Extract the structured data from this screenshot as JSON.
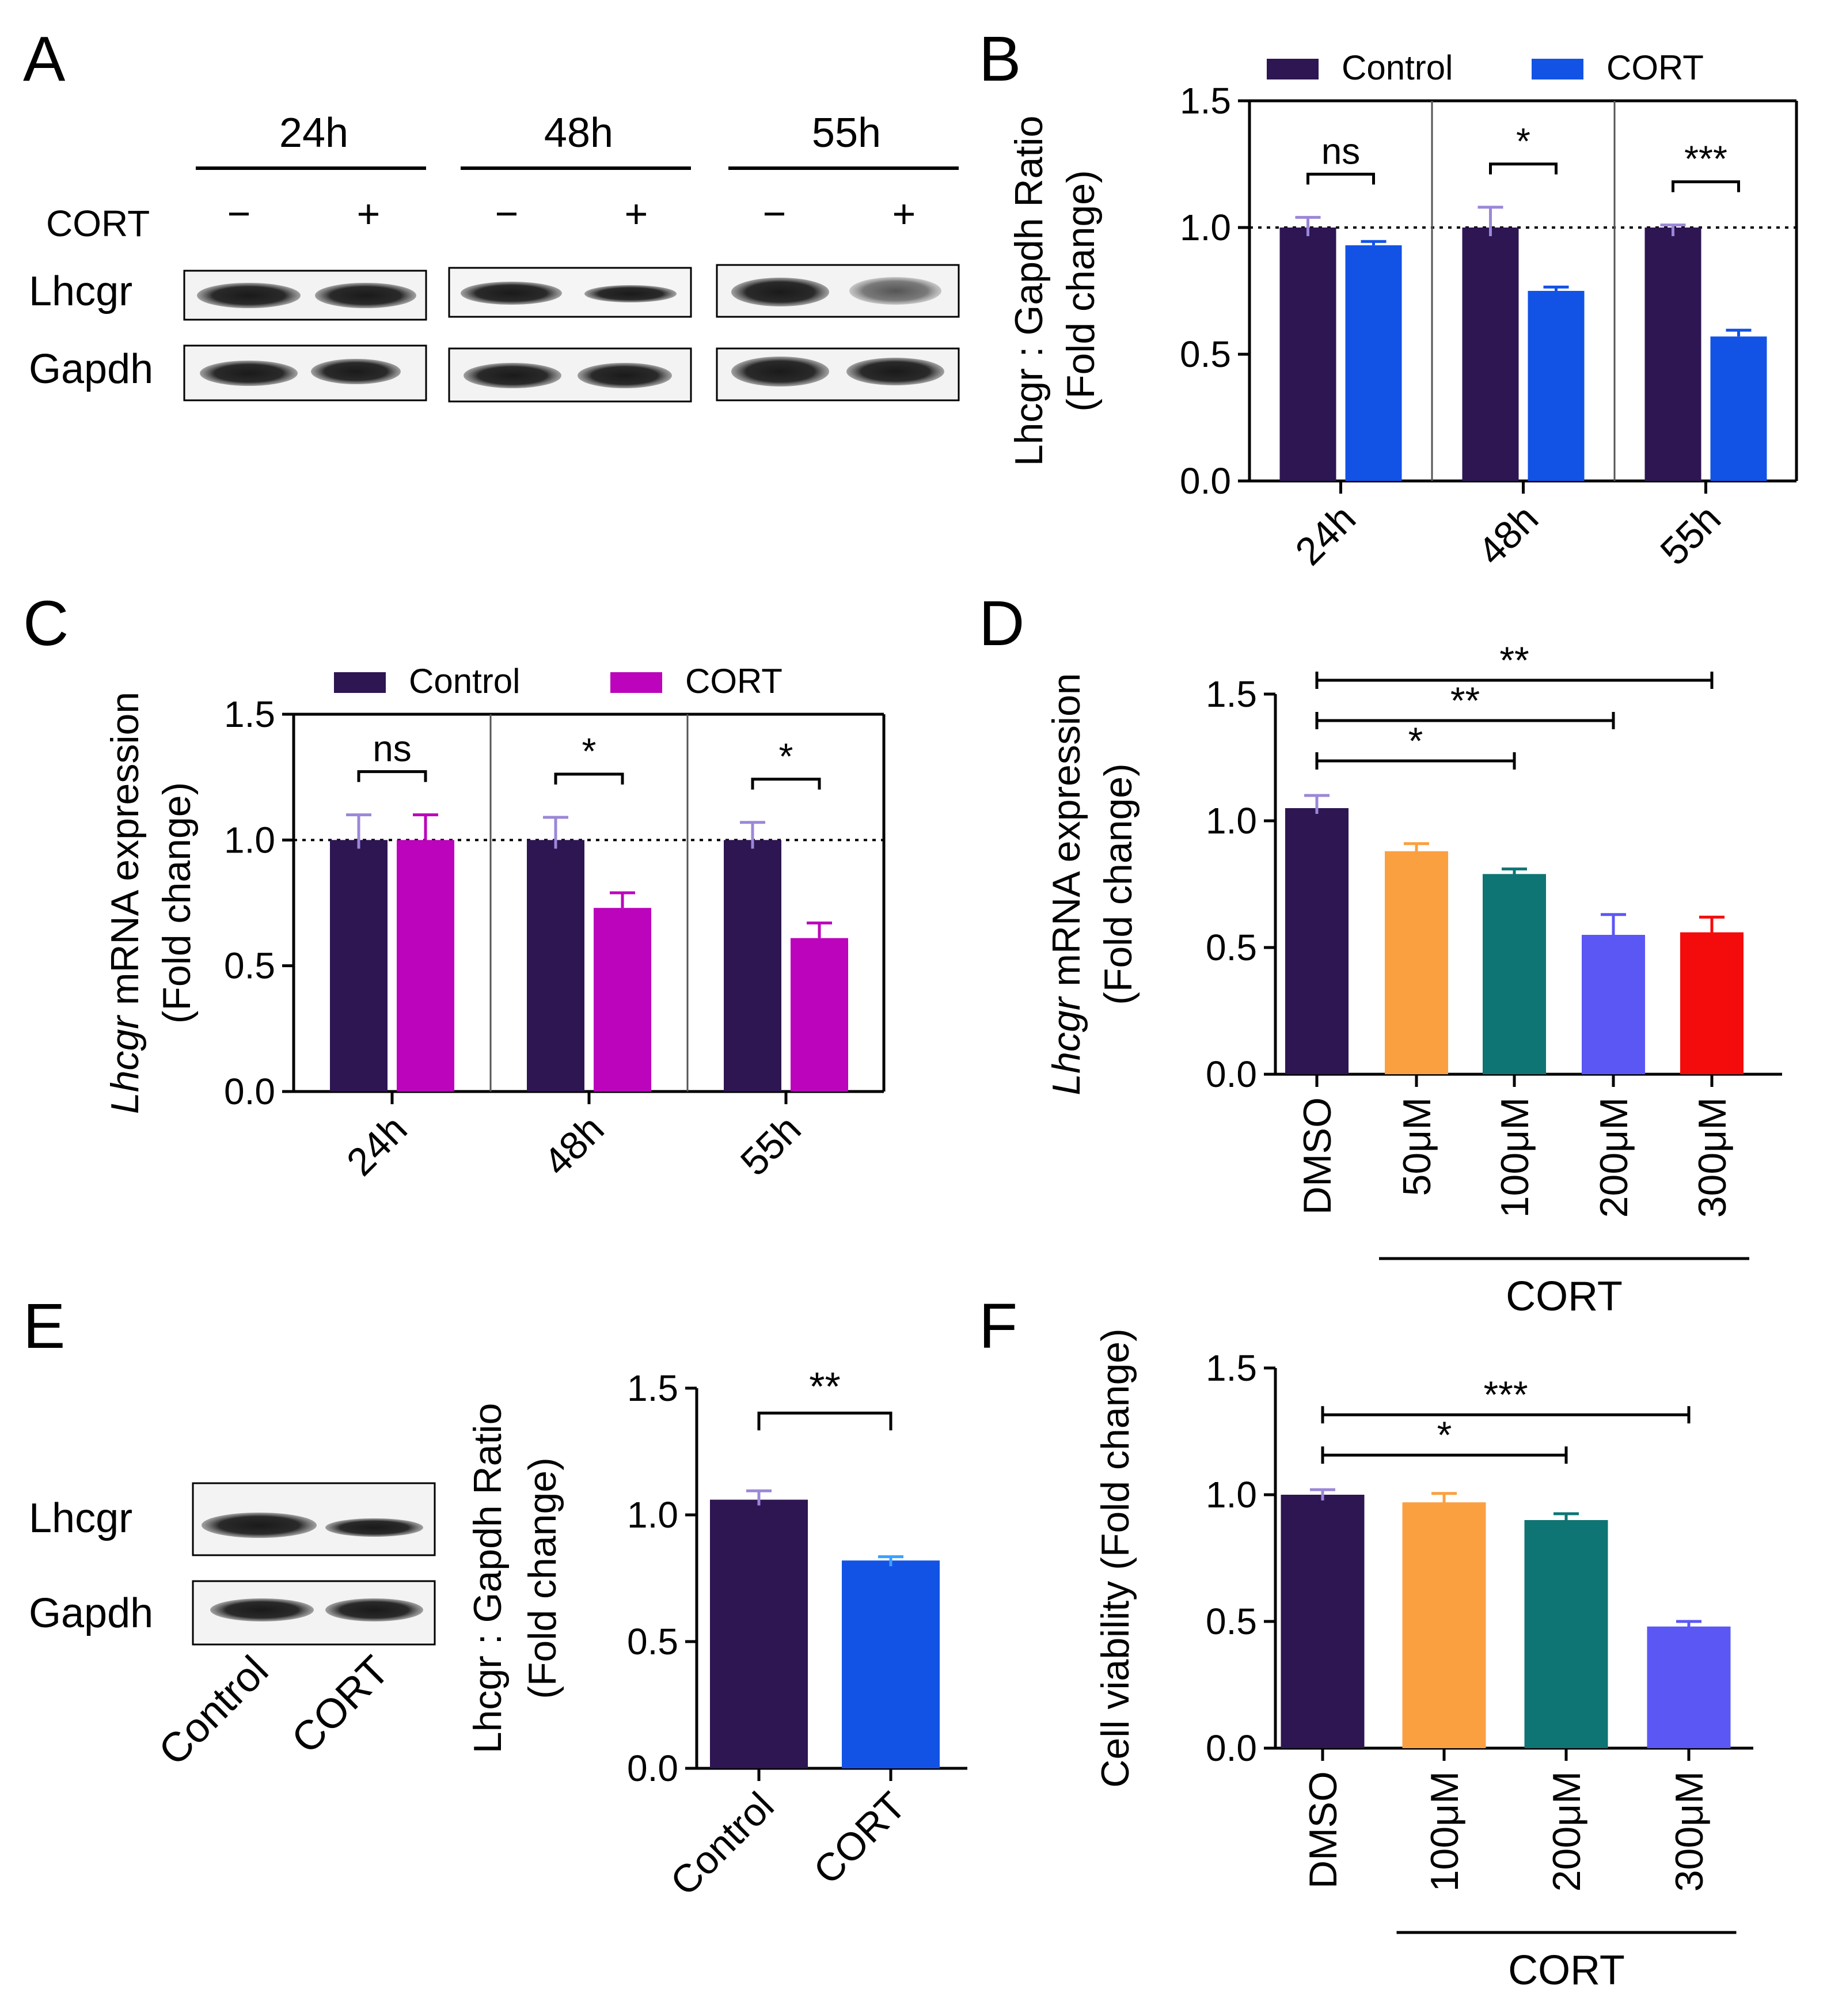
{
  "colors": {
    "control": "#2d1652",
    "cort_blue": "#1253e6",
    "cort_magenta": "#bb04bb",
    "orange": "#fba041",
    "teal": "#0f7474",
    "periwinkle": "#5b57f5",
    "red": "#f40b0b",
    "axis": "#000000"
  },
  "panel_labels": {
    "a": "A",
    "b": "B",
    "c": "C",
    "d": "D",
    "e": "E",
    "f": "F"
  },
  "blot_a": {
    "treatment_label": "CORT",
    "groups": [
      "24h",
      "48h",
      "55h"
    ],
    "signs": [
      "−",
      "+"
    ],
    "rows": [
      "Lhcgr",
      "Gapdh"
    ]
  },
  "blot_e": {
    "rows": [
      "Lhcgr",
      "Gapdh"
    ],
    "lanes": [
      "Control",
      "CORT"
    ]
  },
  "chart_data": [
    {
      "id": "B",
      "type": "bar",
      "title": "",
      "ylabel_line1": "Lhcgr : Gapdh Ratio",
      "ylabel_line2": "(Fold change)",
      "ylim": [
        0,
        1.5
      ],
      "yticks": [
        "0.0",
        "0.5",
        "1.0",
        "1.5"
      ],
      "categories": [
        "24h",
        "48h",
        "55h"
      ],
      "legend": {
        "position": "top",
        "entries": [
          "Control",
          "CORT"
        ]
      },
      "reference_line": 1.0,
      "series": [
        {
          "name": "Control",
          "values": [
            1.0,
            1.0,
            1.0
          ],
          "errors": [
            0.04,
            0.08,
            0.01
          ]
        },
        {
          "name": "CORT",
          "values": [
            0.93,
            0.75,
            0.57
          ],
          "errors": [
            0.015,
            0.015,
            0.025
          ]
        }
      ],
      "significance": [
        "ns",
        "*",
        "***"
      ]
    },
    {
      "id": "C",
      "type": "bar",
      "title": "",
      "ylabel_italic": "Lhcgr",
      "ylabel_rest": " mRNA expression",
      "ylabel_line2": "(Fold change)",
      "ylim": [
        0,
        1.5
      ],
      "yticks": [
        "0.0",
        "0.5",
        "1.0",
        "1.5"
      ],
      "categories": [
        "24h",
        "48h",
        "55h"
      ],
      "legend": {
        "position": "top",
        "entries": [
          "Control",
          "CORT"
        ]
      },
      "reference_line": 1.0,
      "series": [
        {
          "name": "Control",
          "values": [
            1.0,
            1.0,
            1.0
          ],
          "errors": [
            0.1,
            0.09,
            0.07
          ]
        },
        {
          "name": "CORT",
          "values": [
            1.0,
            0.73,
            0.61
          ],
          "errors": [
            0.1,
            0.06,
            0.06
          ]
        }
      ],
      "significance": [
        "ns",
        "*",
        "*"
      ]
    },
    {
      "id": "D",
      "type": "bar",
      "title": "",
      "ylabel_italic": "Lhcgr",
      "ylabel_rest": " mRNA expression",
      "ylabel_line2": "(Fold change)",
      "ylim": [
        0,
        1.5
      ],
      "yticks": [
        "0.0",
        "0.5",
        "1.0",
        "1.5"
      ],
      "categories": [
        "DMSO",
        "50μM",
        "100μM",
        "200μM",
        "300μM"
      ],
      "values": [
        1.05,
        0.88,
        0.79,
        0.55,
        0.56
      ],
      "errors": [
        0.05,
        0.03,
        0.02,
        0.08,
        0.06
      ],
      "group_label": "CORT",
      "comparisons": [
        {
          "from": "DMSO",
          "to": "100μM",
          "label": "*"
        },
        {
          "from": "DMSO",
          "to": "200μM",
          "label": "**"
        },
        {
          "from": "DMSO",
          "to": "300μM",
          "label": "**"
        }
      ]
    },
    {
      "id": "E",
      "type": "bar",
      "title": "",
      "ylabel_line1": "Lhcgr : Gapdh Ratio",
      "ylabel_line2": "(Fold change)",
      "ylim": [
        0,
        1.5
      ],
      "yticks": [
        "0.0",
        "0.5",
        "1.0",
        "1.5"
      ],
      "categories": [
        "Control",
        "CORT"
      ],
      "values": [
        1.06,
        0.82
      ],
      "errors": [
        0.035,
        0.015
      ],
      "comparisons": [
        {
          "from": "Control",
          "to": "CORT",
          "label": "**"
        }
      ]
    },
    {
      "id": "F",
      "type": "bar",
      "title": "",
      "ylabel": "Cell viability (Fold change)",
      "ylim": [
        0,
        1.5
      ],
      "yticks": [
        "0.0",
        "0.5",
        "1.0",
        "1.5"
      ],
      "categories": [
        "DMSO",
        "100μM",
        "200μM",
        "300μM"
      ],
      "values": [
        1.0,
        0.97,
        0.9,
        0.48
      ],
      "errors": [
        0.02,
        0.035,
        0.025,
        0.02
      ],
      "group_label": "CORT",
      "comparisons": [
        {
          "from": "DMSO",
          "to": "200μM",
          "label": "*"
        },
        {
          "from": "DMSO",
          "to": "300μM",
          "label": "***"
        }
      ]
    }
  ]
}
